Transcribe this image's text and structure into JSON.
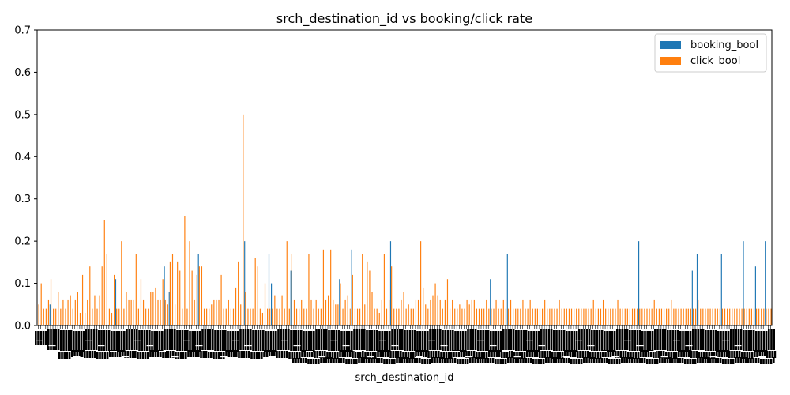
{
  "chart_data": {
    "type": "bar",
    "title": "srch_destination_id vs booking/click rate",
    "xlabel": "srch_destination_id",
    "ylabel": "",
    "ylim": [
      0,
      0.7
    ],
    "yticks": [
      "0.0",
      "0.1",
      "0.2",
      "0.3",
      "0.4",
      "0.5",
      "0.6",
      "0.7"
    ],
    "legend_position": "top-right",
    "series": [
      {
        "name": "booking_bool",
        "color": "#1f77b4",
        "values": [
          0.0,
          0.0,
          0.0,
          0.0,
          0.0,
          0.05,
          0.0,
          0.0,
          0.0,
          0.0,
          0.0,
          0.0,
          0.0,
          0.0,
          0.0,
          0.0,
          0.0,
          0.0,
          0.0,
          0.0,
          0.0,
          0.0,
          0.0,
          0.0,
          0.0,
          0.0,
          0.0,
          0.0,
          0.0,
          0.0,
          0.0,
          0.0,
          0.11,
          0.0,
          0.0,
          0.0,
          0.0,
          0.0,
          0.0,
          0.0,
          0.0,
          0.0,
          0.0,
          0.0,
          0.0,
          0.0,
          0.0,
          0.0,
          0.0,
          0.0,
          0.0,
          0.0,
          0.14,
          0.0,
          0.08,
          0.0,
          0.0,
          0.0,
          0.0,
          0.0,
          0.0,
          0.0,
          0.0,
          0.0,
          0.0,
          0.0,
          0.17,
          0.0,
          0.0,
          0.0,
          0.0,
          0.0,
          0.0,
          0.0,
          0.0,
          0.0,
          0.0,
          0.0,
          0.0,
          0.0,
          0.0,
          0.0,
          0.0,
          0.0,
          0.0,
          0.2,
          0.0,
          0.0,
          0.0,
          0.0,
          0.0,
          0.0,
          0.0,
          0.0,
          0.0,
          0.17,
          0.1,
          0.0,
          0.0,
          0.0,
          0.0,
          0.0,
          0.0,
          0.0,
          0.13,
          0.0,
          0.0,
          0.0,
          0.0,
          0.0,
          0.0,
          0.0,
          0.0,
          0.0,
          0.0,
          0.0,
          0.0,
          0.0,
          0.0,
          0.0,
          0.0,
          0.0,
          0.0,
          0.0,
          0.11,
          0.0,
          0.0,
          0.0,
          0.0,
          0.18,
          0.0,
          0.0,
          0.0,
          0.0,
          0.0,
          0.0,
          0.0,
          0.0,
          0.0,
          0.0,
          0.0,
          0.0,
          0.0,
          0.0,
          0.0,
          0.2,
          0.0,
          0.0,
          0.0,
          0.0,
          0.0,
          0.0,
          0.0,
          0.0,
          0.0,
          0.0,
          0.0,
          0.0,
          0.0,
          0.0,
          0.0,
          0.0,
          0.0,
          0.0,
          0.0,
          0.0,
          0.0,
          0.0,
          0.0,
          0.0,
          0.0,
          0.0,
          0.0,
          0.0,
          0.0,
          0.0,
          0.0,
          0.0,
          0.0,
          0.0,
          0.0,
          0.0,
          0.0,
          0.0,
          0.0,
          0.0,
          0.11,
          0.0,
          0.0,
          0.0,
          0.0,
          0.0,
          0.0,
          0.17,
          0.0,
          0.0,
          0.0,
          0.0,
          0.0,
          0.0,
          0.0,
          0.0,
          0.0,
          0.0,
          0.0,
          0.0,
          0.0,
          0.0,
          0.0,
          0.0,
          0.0,
          0.0,
          0.0,
          0.0,
          0.0,
          0.0,
          0.0,
          0.0,
          0.0,
          0.0,
          0.0,
          0.0,
          0.0,
          0.0,
          0.0,
          0.0,
          0.0,
          0.0,
          0.0,
          0.0,
          0.0,
          0.0,
          0.0,
          0.0,
          0.0,
          0.0,
          0.0,
          0.0,
          0.0,
          0.0,
          0.0,
          0.0,
          0.0,
          0.0,
          0.0,
          0.0,
          0.0,
          0.2,
          0.0,
          0.0,
          0.0,
          0.0,
          0.0,
          0.0,
          0.0,
          0.0,
          0.0,
          0.0,
          0.0,
          0.0,
          0.0,
          0.0,
          0.0,
          0.0,
          0.0,
          0.0,
          0.0,
          0.0,
          0.0,
          0.13,
          0.0,
          0.17,
          0.0,
          0.0,
          0.0,
          0.0,
          0.0,
          0.0,
          0.0,
          0.0,
          0.0,
          0.17,
          0.0,
          0.0,
          0.0,
          0.0,
          0.0,
          0.0,
          0.0,
          0.0,
          0.2,
          0.0,
          0.0,
          0.0,
          0.0,
          0.14,
          0.0,
          0.0,
          0.0,
          0.2,
          0.0,
          0.0
        ]
      },
      {
        "name": "click_bool",
        "color": "#ff7f0e",
        "values": [
          0.05,
          0.1,
          0.04,
          0.04,
          0.06,
          0.11,
          0.04,
          0.04,
          0.08,
          0.04,
          0.06,
          0.04,
          0.06,
          0.07,
          0.04,
          0.06,
          0.08,
          0.03,
          0.12,
          0.03,
          0.06,
          0.14,
          0.04,
          0.07,
          0.04,
          0.07,
          0.14,
          0.25,
          0.17,
          0.04,
          0.03,
          0.12,
          0.04,
          0.04,
          0.2,
          0.04,
          0.08,
          0.06,
          0.06,
          0.06,
          0.17,
          0.04,
          0.11,
          0.06,
          0.04,
          0.04,
          0.08,
          0.08,
          0.09,
          0.06,
          0.06,
          0.11,
          0.06,
          0.05,
          0.15,
          0.17,
          0.05,
          0.15,
          0.13,
          0.04,
          0.26,
          0.04,
          0.2,
          0.13,
          0.06,
          0.12,
          0.14,
          0.14,
          0.04,
          0.04,
          0.04,
          0.05,
          0.06,
          0.06,
          0.06,
          0.12,
          0.04,
          0.04,
          0.06,
          0.04,
          0.04,
          0.09,
          0.15,
          0.05,
          0.5,
          0.08,
          0.04,
          0.04,
          0.04,
          0.16,
          0.14,
          0.04,
          0.03,
          0.1,
          0.04,
          0.04,
          0.04,
          0.07,
          0.04,
          0.04,
          0.07,
          0.04,
          0.2,
          0.04,
          0.17,
          0.06,
          0.04,
          0.04,
          0.06,
          0.04,
          0.04,
          0.17,
          0.06,
          0.04,
          0.06,
          0.04,
          0.04,
          0.18,
          0.06,
          0.07,
          0.18,
          0.06,
          0.05,
          0.05,
          0.1,
          0.04,
          0.06,
          0.07,
          0.04,
          0.12,
          0.04,
          0.04,
          0.04,
          0.17,
          0.05,
          0.15,
          0.13,
          0.08,
          0.04,
          0.04,
          0.03,
          0.06,
          0.17,
          0.04,
          0.06,
          0.14,
          0.04,
          0.04,
          0.04,
          0.06,
          0.08,
          0.04,
          0.05,
          0.04,
          0.04,
          0.06,
          0.06,
          0.2,
          0.09,
          0.05,
          0.04,
          0.06,
          0.07,
          0.1,
          0.07,
          0.06,
          0.04,
          0.06,
          0.11,
          0.04,
          0.06,
          0.04,
          0.04,
          0.05,
          0.04,
          0.04,
          0.06,
          0.05,
          0.06,
          0.06,
          0.04,
          0.04,
          0.04,
          0.04,
          0.06,
          0.04,
          0.04,
          0.04,
          0.06,
          0.04,
          0.04,
          0.06,
          0.04,
          0.04,
          0.06,
          0.04,
          0.04,
          0.04,
          0.04,
          0.06,
          0.04,
          0.04,
          0.06,
          0.04,
          0.04,
          0.04,
          0.04,
          0.04,
          0.06,
          0.04,
          0.04,
          0.04,
          0.04,
          0.04,
          0.06,
          0.04,
          0.04,
          0.04,
          0.04,
          0.04,
          0.04,
          0.04,
          0.04,
          0.04,
          0.04,
          0.04,
          0.04,
          0.04,
          0.06,
          0.04,
          0.04,
          0.04,
          0.06,
          0.04,
          0.04,
          0.04,
          0.04,
          0.04,
          0.06,
          0.04,
          0.04,
          0.04,
          0.04,
          0.04,
          0.04,
          0.04,
          0.04,
          0.04,
          0.04,
          0.04,
          0.04,
          0.04,
          0.04,
          0.06,
          0.04,
          0.04,
          0.04,
          0.04,
          0.04,
          0.04,
          0.06,
          0.04,
          0.04,
          0.04,
          0.04,
          0.04,
          0.04,
          0.04,
          0.04,
          0.04,
          0.04,
          0.06,
          0.04,
          0.04,
          0.04,
          0.04,
          0.04,
          0.04,
          0.04,
          0.04,
          0.04,
          0.04,
          0.04,
          0.04,
          0.04,
          0.04,
          0.04,
          0.04,
          0.04,
          0.04,
          0.04,
          0.04,
          0.04,
          0.04,
          0.04,
          0.04,
          0.04,
          0.04,
          0.04,
          0.04,
          0.04,
          0.04
        ]
      }
    ]
  }
}
